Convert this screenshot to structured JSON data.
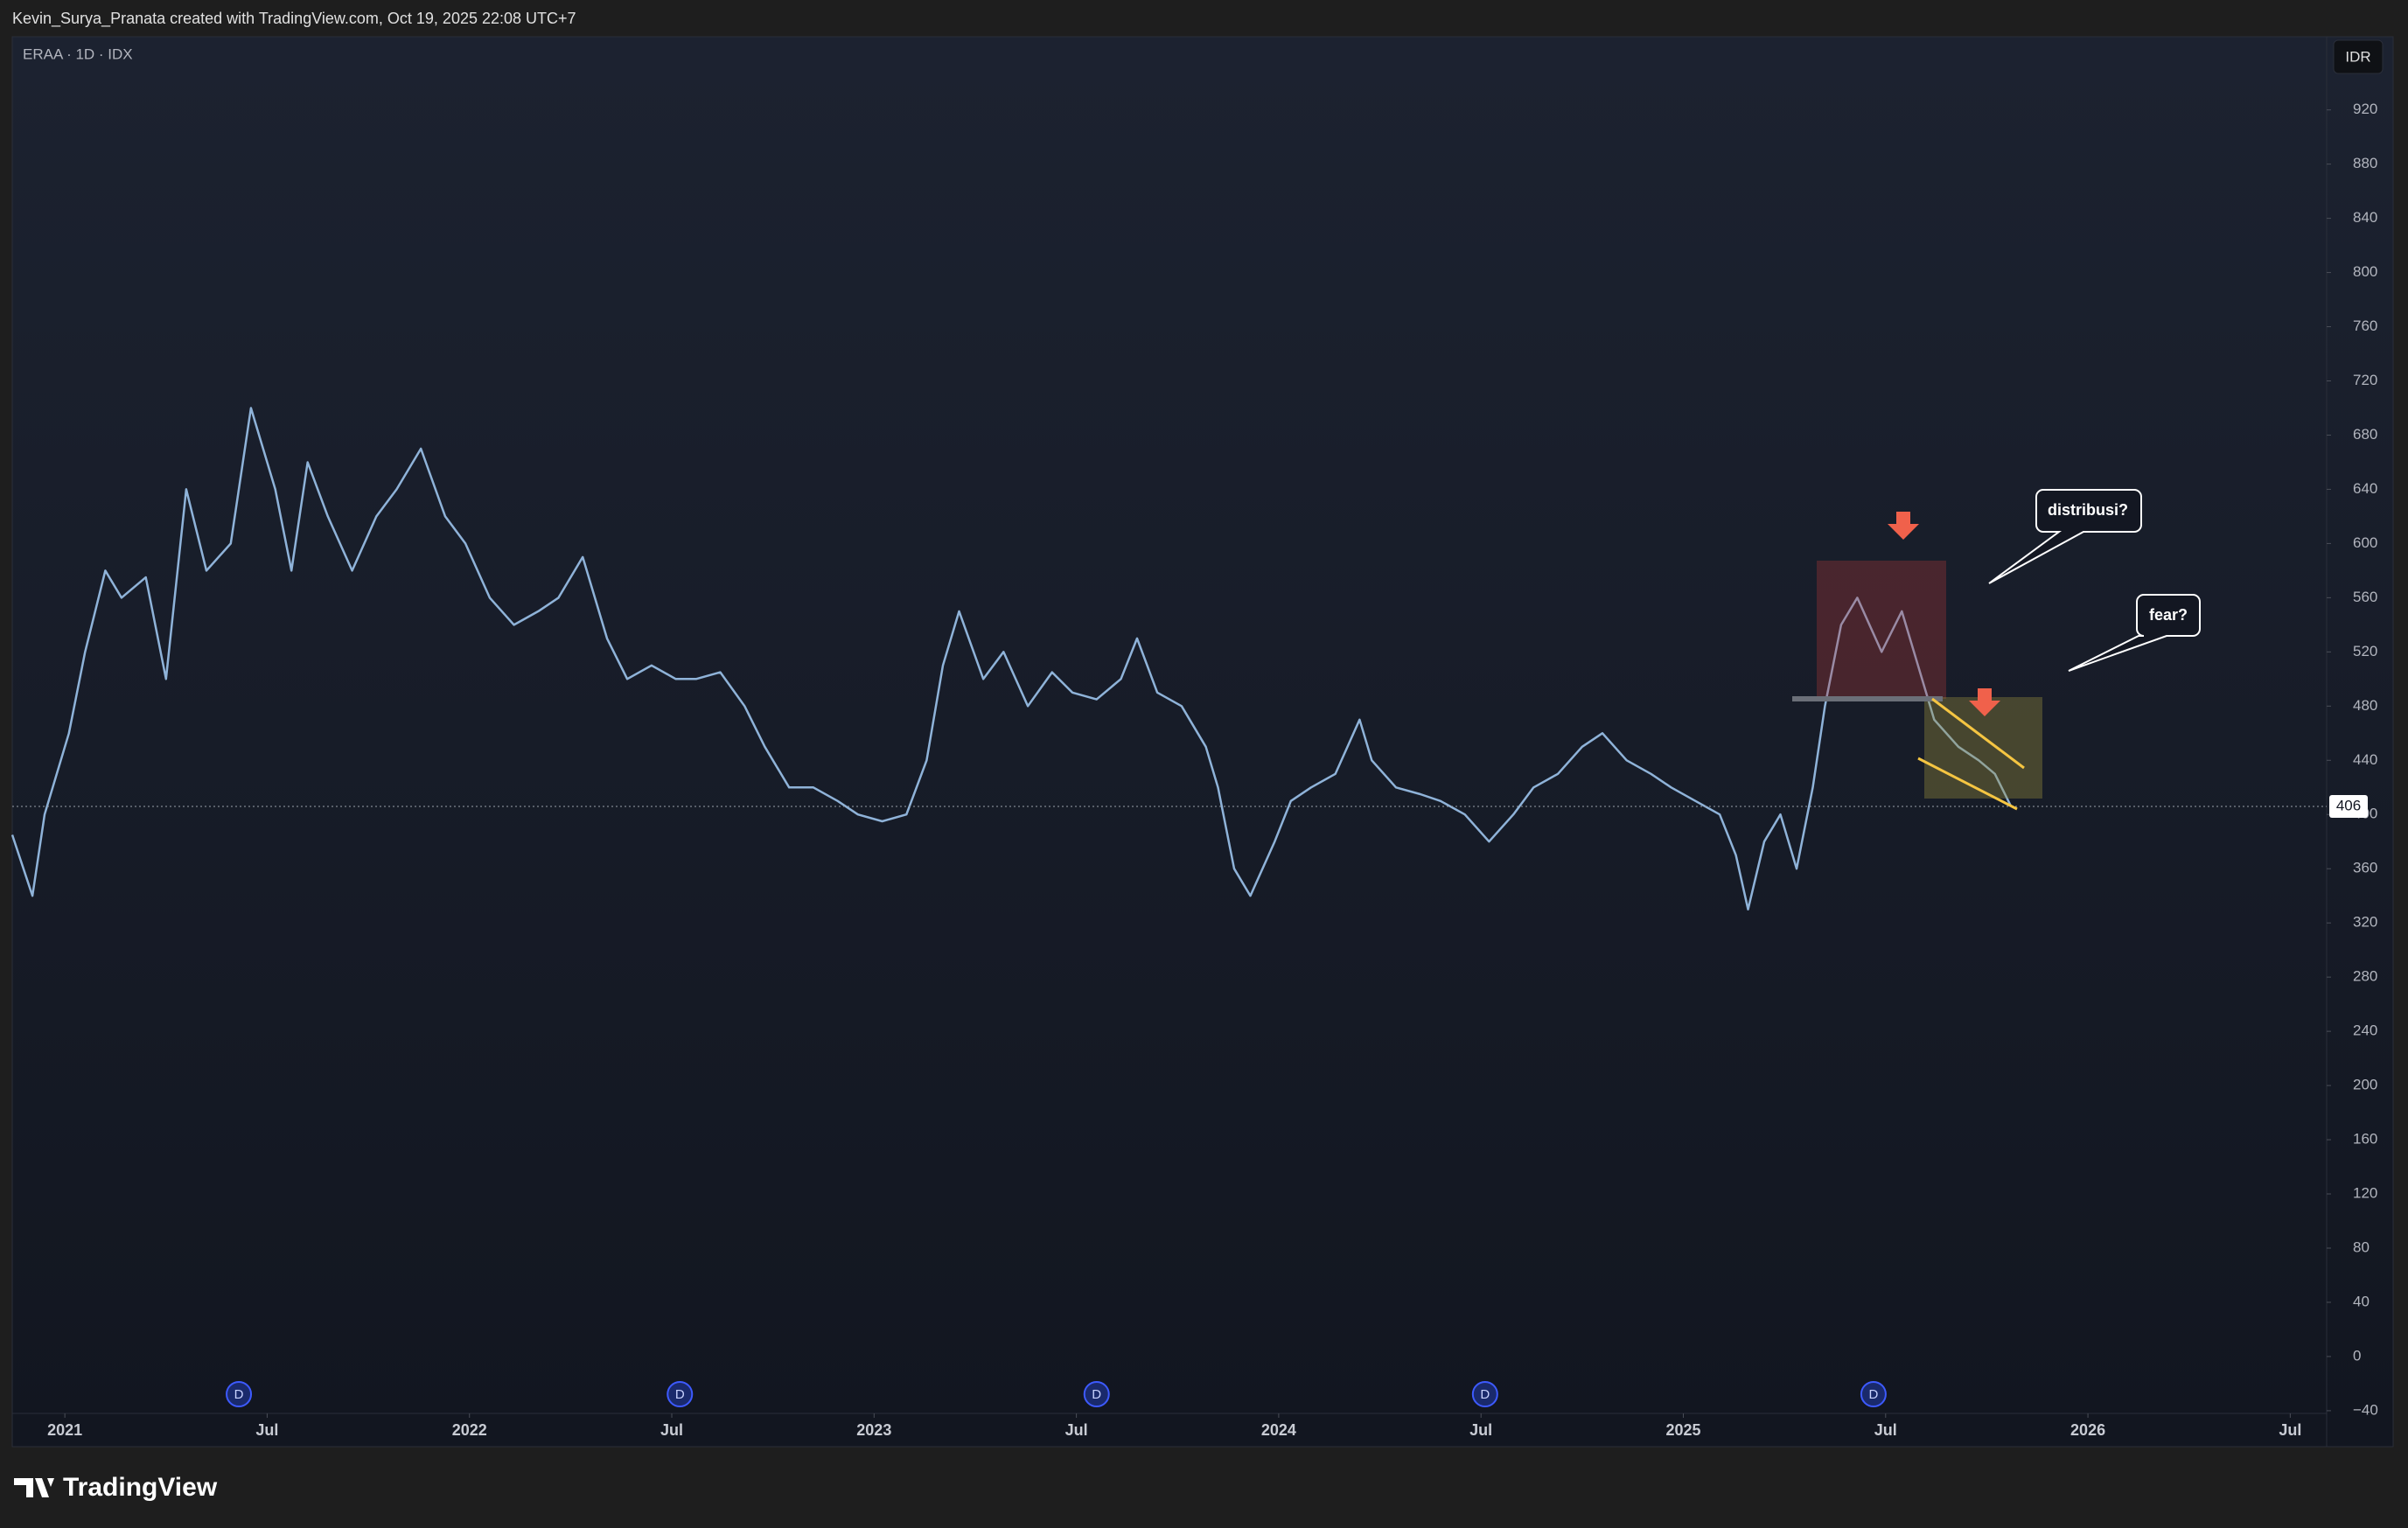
{
  "header": {
    "attribution": "Kevin_Surya_Pranata created with TradingView.com, Oct 19, 2025 22:08 UTC+7"
  },
  "chart_data": {
    "type": "line",
    "title": "ERAA · 1D · IDX",
    "currency": "IDR",
    "color": "#8fb3d9",
    "x": [
      2020.87,
      2020.92,
      2020.95,
      2021.01,
      2021.05,
      2021.1,
      2021.14,
      2021.2,
      2021.25,
      2021.3,
      2021.35,
      2021.41,
      2021.46,
      2021.52,
      2021.56,
      2021.6,
      2021.65,
      2021.71,
      2021.77,
      2021.82,
      2021.88,
      2021.94,
      2021.99,
      2022.05,
      2022.11,
      2022.17,
      2022.22,
      2022.28,
      2022.34,
      2022.39,
      2022.45,
      2022.51,
      2022.56,
      2022.62,
      2022.68,
      2022.73,
      2022.79,
      2022.85,
      2022.91,
      2022.96,
      2023.02,
      2023.08,
      2023.13,
      2023.17,
      2023.21,
      2023.27,
      2023.32,
      2023.38,
      2023.44,
      2023.49,
      2023.55,
      2023.61,
      2023.65,
      2023.7,
      2023.76,
      2023.82,
      2023.85,
      2023.89,
      2023.93,
      2023.99,
      2024.03,
      2024.08,
      2024.14,
      2024.2,
      2024.23,
      2024.29,
      2024.35,
      2024.4,
      2024.46,
      2024.52,
      2024.58,
      2024.63,
      2024.69,
      2024.75,
      2024.8,
      2024.86,
      2024.92,
      2024.97,
      2025.03,
      2025.09,
      2025.13,
      2025.16,
      2025.2,
      2025.24,
      2025.28,
      2025.32,
      2025.35,
      2025.39,
      2025.43,
      2025.49,
      2025.54,
      2025.58,
      2025.62,
      2025.68,
      2025.73,
      2025.77,
      2025.81
    ],
    "values": [
      385,
      340,
      400,
      460,
      520,
      580,
      560,
      575,
      500,
      640,
      580,
      600,
      700,
      640,
      580,
      660,
      620,
      580,
      620,
      640,
      670,
      620,
      600,
      560,
      540,
      550,
      560,
      590,
      530,
      500,
      510,
      500,
      500,
      505,
      480,
      450,
      420,
      420,
      410,
      400,
      395,
      400,
      440,
      510,
      550,
      500,
      520,
      480,
      505,
      490,
      485,
      500,
      530,
      490,
      480,
      450,
      420,
      360,
      340,
      380,
      410,
      420,
      430,
      470,
      440,
      420,
      415,
      410,
      400,
      380,
      400,
      420,
      430,
      450,
      460,
      440,
      430,
      420,
      410,
      400,
      370,
      330,
      380,
      400,
      360,
      420,
      480,
      540,
      560,
      520,
      550,
      510,
      470,
      450,
      440,
      430,
      406
    ],
    "last_price": 406,
    "xlim": [
      2020.87,
      2026.59
    ],
    "xticks": [
      {
        "value": 2021,
        "label": "2021"
      },
      {
        "value": 2021.5,
        "label": "Jul"
      },
      {
        "value": 2022,
        "label": "2022"
      },
      {
        "value": 2022.5,
        "label": "Jul"
      },
      {
        "value": 2023,
        "label": "2023"
      },
      {
        "value": 2023.5,
        "label": "Jul"
      },
      {
        "value": 2024,
        "label": "2024"
      },
      {
        "value": 2024.5,
        "label": "Jul"
      },
      {
        "value": 2025,
        "label": "2025"
      },
      {
        "value": 2025.5,
        "label": "Jul"
      },
      {
        "value": 2026,
        "label": "2026"
      },
      {
        "value": 2026.5,
        "label": "Jul"
      }
    ],
    "ylim": [
      -42,
      974
    ],
    "yticks": [
      {
        "value": -40,
        "label": "−40"
      },
      0,
      40,
      80,
      120,
      160,
      200,
      240,
      280,
      320,
      360,
      400,
      440,
      480,
      520,
      560,
      600,
      640,
      680,
      720,
      760,
      800,
      840,
      880,
      920
    ],
    "annotations": [
      "distribusi?",
      "fear?"
    ],
    "events": [
      {
        "label": "D",
        "x": 2021.43
      },
      {
        "label": "D",
        "x": 2022.52
      },
      {
        "label": "D",
        "x": 2023.55
      },
      {
        "label": "D",
        "x": 2024.51
      },
      {
        "label": "D",
        "x": 2025.47
      }
    ]
  },
  "footer": {
    "brand": "TradingView"
  }
}
